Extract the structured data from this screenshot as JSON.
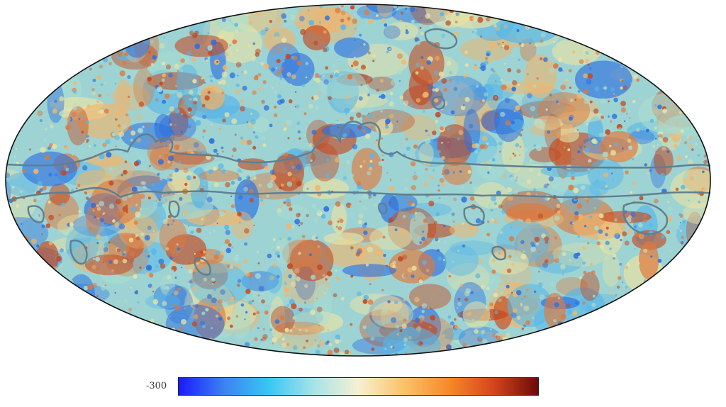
{
  "colorbar": {
    "min_label": "-300",
    "stops": [
      "#1a1aff",
      "#3b82f0",
      "#38c6f4",
      "#a6e3e9",
      "#f6f1d1",
      "#fbc36a",
      "#f78a2a",
      "#d4461b",
      "#6b0a0a"
    ]
  },
  "map": {
    "projection": "mollweide",
    "background_palette": [
      "#2a6fe0",
      "#57b6e8",
      "#a9dcd0",
      "#e9e3a4",
      "#f2b56a",
      "#e0783a",
      "#c3471f"
    ],
    "outline_color": "#000000",
    "contour_color": "#5f7f8f"
  }
}
